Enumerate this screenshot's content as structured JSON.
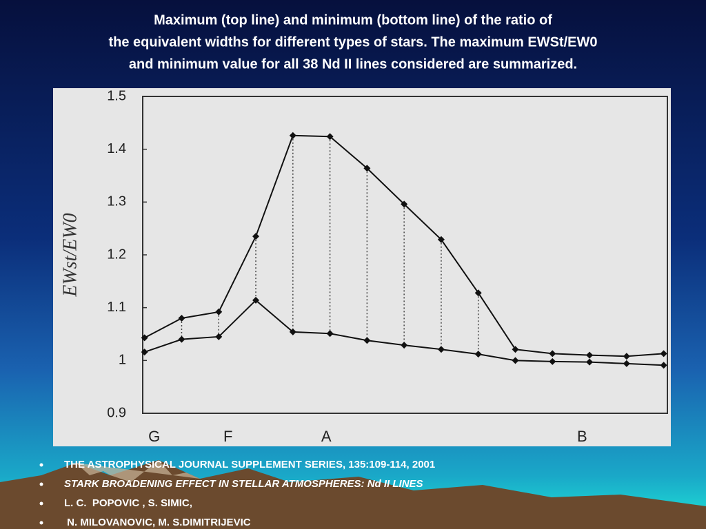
{
  "chart_data": {
    "type": "line",
    "title": [
      "Maximum (top line) and minimum (bottom line) of the ratio of",
      "the equivalent widths for different types of stars. The maximum EWSt/EW0",
      "and minimum value for all 38 Nd II lines considered are summarized."
    ],
    "ylabel": "EWst/EW0",
    "x": [
      0,
      1,
      2,
      3,
      4,
      5,
      6,
      7,
      8,
      9,
      10,
      11,
      12,
      13,
      14
    ],
    "xlim": [
      -0.05,
      14.1
    ],
    "xticks": [
      {
        "value": 0.26,
        "label": "G"
      },
      {
        "value": 2.25,
        "label": "F"
      },
      {
        "value": 4.9,
        "label": "A"
      },
      {
        "value": 11.8,
        "label": "B"
      }
    ],
    "ylim": [
      0.9,
      1.5
    ],
    "yticks": [
      0.9,
      {
        "value": 1,
        "label": "1"
      },
      1.1,
      1.2,
      1.3,
      1.4,
      1.5
    ],
    "series": [
      {
        "color": "#111111",
        "values": [
          1.043,
          1.08,
          1.092,
          1.235,
          1.426,
          1.424,
          1.364,
          1.296,
          1.229,
          1.128,
          1.021,
          1.013,
          1.01,
          1.008,
          1.013
        ]
      },
      {
        "color": "#111111",
        "values": [
          1.016,
          1.04,
          1.045,
          1.114,
          1.054,
          1.051,
          1.038,
          1.029,
          1.021,
          1.012,
          1.0,
          0.998,
          0.997,
          0.994,
          0.991
        ]
      }
    ]
  },
  "bullets": [
    {
      "text": "THE ASTROPHYSICAL JOURNAL SUPPLEMENT SERIES, 135:109-114, 2001",
      "italic": false
    },
    {
      "text": "STARK BROADENING EFFECT IN STELLAR ATMOSPHERES: Nd II LINES",
      "italic": true
    },
    {
      "text": "L. C.  POPOVIC , S. SIMIC,",
      "italic": false
    },
    {
      "text": " N. MILOVANOVIC, M. S.DIMITRIJEVIC",
      "italic": false
    }
  ]
}
